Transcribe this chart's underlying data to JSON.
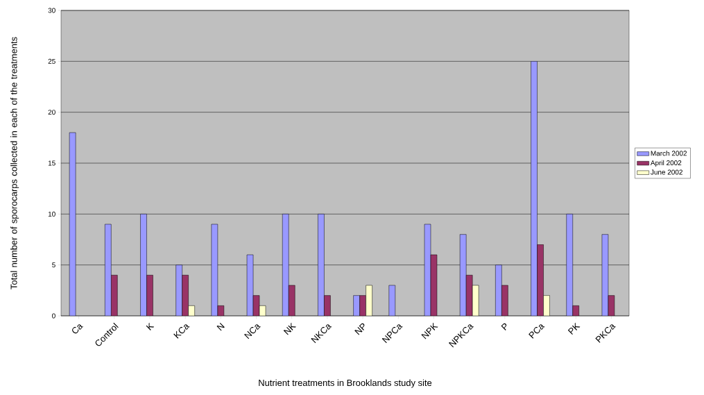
{
  "chart_data": {
    "type": "bar",
    "xlabel": "Nutrient treatments in Brooklands study site",
    "ylabel": "Total number of sporocarps collected in each of the treatments",
    "categories": [
      "Ca",
      "Control",
      "K",
      "KCa",
      "N",
      "NCa",
      "NK",
      "NKCa",
      "NP",
      "NPCa",
      "NPK",
      "NPKCa",
      "P",
      "PCa",
      "PK",
      "PKCa"
    ],
    "series": [
      {
        "name": "March 2002",
        "color": "#9999ff",
        "values": [
          18,
          9,
          10,
          5,
          9,
          6,
          10,
          10,
          2,
          3,
          9,
          8,
          5,
          25,
          10,
          8
        ]
      },
      {
        "name": "April 2002",
        "color": "#993366",
        "values": [
          null,
          4,
          4,
          4,
          1,
          2,
          3,
          2,
          2,
          null,
          6,
          4,
          3,
          7,
          1,
          2
        ]
      },
      {
        "name": "June 2002",
        "color": "#ffffcc",
        "values": [
          null,
          null,
          null,
          1,
          null,
          1,
          null,
          null,
          3,
          null,
          null,
          3,
          null,
          2,
          null,
          null
        ]
      }
    ],
    "ylim": [
      0,
      30
    ],
    "yticks": [
      0,
      5,
      10,
      15,
      20,
      25,
      30
    ],
    "grid": "y",
    "legend": "right"
  }
}
